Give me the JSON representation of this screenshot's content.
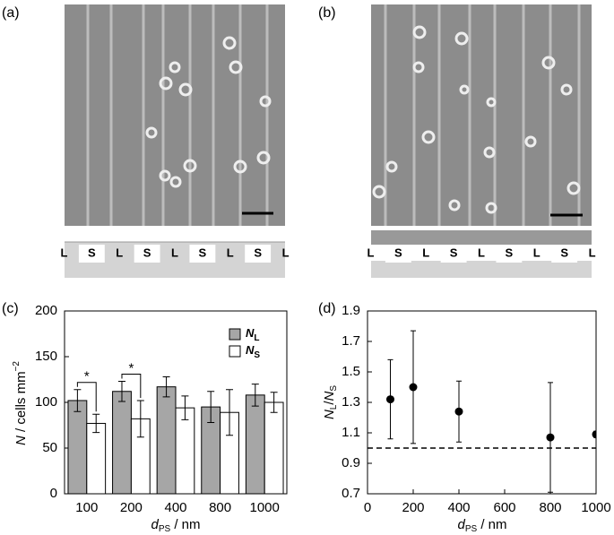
{
  "panels": [
    "(a)",
    "(b)",
    "(c)",
    "(d)"
  ],
  "pattern_a": [
    "L",
    "S",
    "L",
    "S",
    "L",
    "S",
    "L",
    "S",
    "L"
  ],
  "pattern_b": [
    "L",
    "S",
    "L",
    "S",
    "L",
    "S",
    "L",
    "S",
    "L"
  ],
  "chart_data": [
    {
      "type": "bar",
      "xlabel": [
        "d",
        "PS",
        " / nm"
      ],
      "ylabel": [
        "N",
        " / cells mm",
        "−2"
      ],
      "categories": [
        "100",
        "200",
        "400",
        "800",
        "1000"
      ],
      "series": [
        {
          "name": "N",
          "name_sub": "L",
          "color": "#a6a6a6",
          "values": [
            102,
            112,
            117,
            95,
            108
          ],
          "errors": [
            12,
            11,
            11,
            17,
            12
          ]
        },
        {
          "name": "N",
          "name_sub": "S",
          "color": "#ffffff",
          "values": [
            77,
            82,
            94,
            89,
            100
          ],
          "errors": [
            10,
            20,
            13,
            25,
            11
          ]
        }
      ],
      "annotations": [
        {
          "text": "*",
          "category": "100"
        },
        {
          "text": "*",
          "category": "200"
        }
      ],
      "ylim": [
        0,
        200
      ],
      "yticks": [
        0,
        50,
        100,
        150,
        200
      ]
    },
    {
      "type": "scatter",
      "xlabel": [
        "d",
        "PS",
        " / nm"
      ],
      "ylabel": [
        "N",
        "L",
        "/",
        "N",
        "S"
      ],
      "x": [
        100,
        200,
        400,
        800,
        1000
      ],
      "values": [
        1.32,
        1.4,
        1.24,
        1.07,
        1.09
      ],
      "errors": [
        0.26,
        0.37,
        0.2,
        0.36,
        0.02
      ],
      "color": "#000000",
      "reference_line": 1,
      "xlim": [
        0,
        1000
      ],
      "xticks": [
        0,
        200,
        400,
        600,
        800,
        1000
      ],
      "ylim": [
        0.7,
        1.9
      ],
      "yticks": [
        0.7,
        0.9,
        1.1,
        1.3,
        1.5,
        1.7,
        1.9
      ]
    }
  ]
}
